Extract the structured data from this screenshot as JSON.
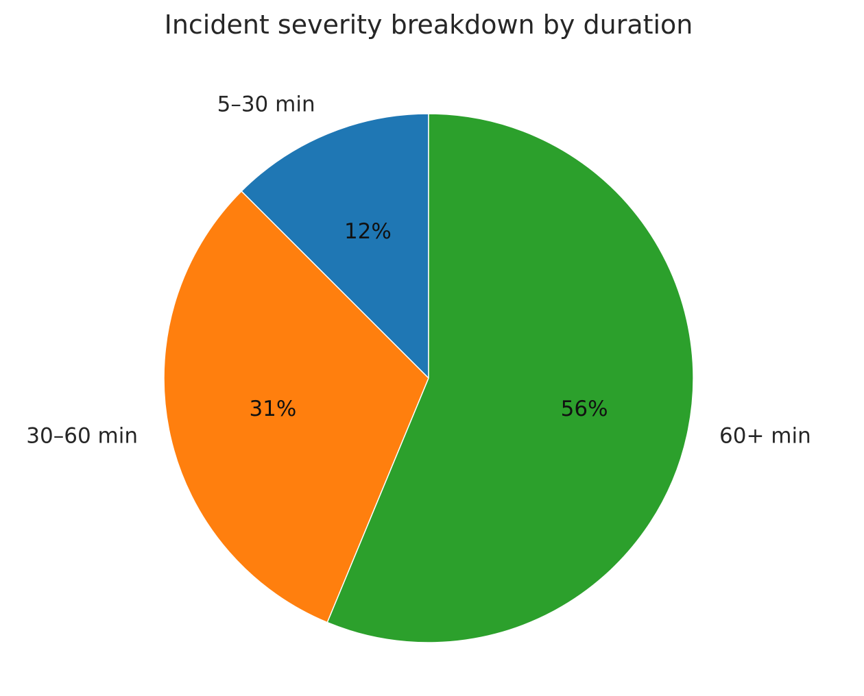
{
  "chart_data": {
    "type": "pie",
    "title": "Incident severity breakdown by duration",
    "slices": [
      {
        "label": "5–30 min",
        "value": 12.5,
        "pct_label": "12%",
        "color": "#1f77b4"
      },
      {
        "label": "30–60 min",
        "value": 31.25,
        "pct_label": "31%",
        "color": "#ff7f0e"
      },
      {
        "label": "60+ min",
        "value": 56.25,
        "pct_label": "56%",
        "color": "#2ca02c"
      }
    ],
    "start_angle_deg": 90,
    "direction": "counterclockwise",
    "legend": "none"
  }
}
